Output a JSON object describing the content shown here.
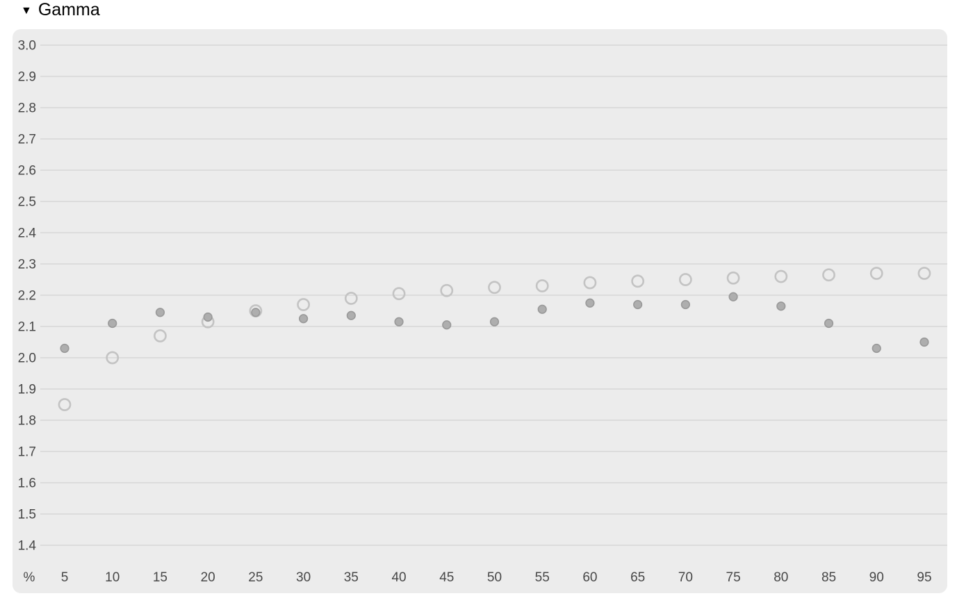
{
  "section": {
    "title": "Gamma",
    "collapse_icon": "▼"
  },
  "colors": {
    "page_bg": "#ffffff",
    "title_color": "#000000",
    "panel_bg": "#ececec",
    "gridline": "#cbcbcb",
    "tick_label": "#474747",
    "open_marker_stroke": "#c3c3c3",
    "filled_marker_fill": "#aeaeae",
    "filled_marker_stroke": "#999999"
  },
  "chart_data": {
    "type": "scatter",
    "title": "Gamma",
    "x_unit": "%",
    "x": [
      5,
      10,
      15,
      20,
      25,
      30,
      35,
      40,
      45,
      50,
      55,
      60,
      65,
      70,
      75,
      80,
      85,
      90,
      95
    ],
    "xtick_labels": [
      "5",
      "10",
      "15",
      "20",
      "25",
      "30",
      "35",
      "40",
      "45",
      "50",
      "55",
      "60",
      "65",
      "70",
      "75",
      "80",
      "85",
      "90",
      "95"
    ],
    "ylim": [
      1.4,
      3.0
    ],
    "ytick_step": 0.1,
    "ytick_labels": [
      "3.0",
      "2.9",
      "2.8",
      "2.7",
      "2.6",
      "2.5",
      "2.4",
      "2.3",
      "2.2",
      "2.1",
      "2.0",
      "1.9",
      "1.8",
      "1.7",
      "1.6",
      "1.5",
      "1.4"
    ],
    "grid": "horizontal",
    "legend": "none",
    "series": [
      {
        "name": "open-circle-series",
        "marker": "open-circle",
        "values": [
          1.85,
          2.0,
          2.07,
          2.115,
          2.15,
          2.17,
          2.19,
          2.205,
          2.215,
          2.225,
          2.23,
          2.24,
          2.245,
          2.25,
          2.255,
          2.26,
          2.265,
          2.27,
          2.27
        ]
      },
      {
        "name": "filled-dot-series",
        "marker": "filled-dot",
        "values": [
          2.03,
          2.11,
          2.145,
          2.13,
          2.145,
          2.125,
          2.135,
          2.115,
          2.105,
          2.115,
          2.155,
          2.175,
          2.17,
          2.17,
          2.195,
          2.165,
          2.11,
          2.03,
          2.05
        ]
      }
    ]
  }
}
